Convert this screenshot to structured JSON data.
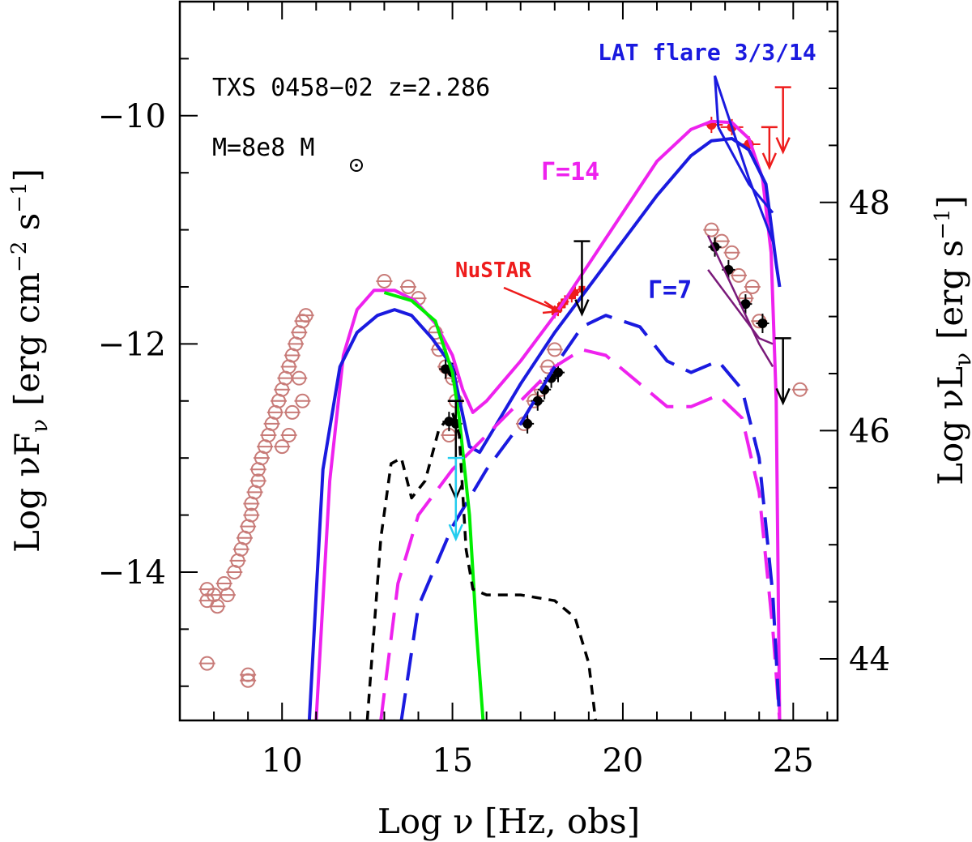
{
  "chart_data": {
    "type": "scatter",
    "title": "",
    "xlabel": "Log ν  [Hz, obs]",
    "ylabel": "Log νF",
    "ylabel_sub": "ν",
    "ylabel_units": "[erg cm",
    "ylabel_units_exp": "−2",
    "ylabel_units_tail": " s",
    "ylabel_units_exp2": "−1",
    "ylabel_units_close": "]",
    "ylabel_right": "Log νL",
    "ylabel_right_sub": "ν",
    "ylabel_right_units": "[erg s",
    "ylabel_right_units_exp": "−1",
    "ylabel_right_units_close": "]",
    "xlim": [
      7,
      26.3
    ],
    "ylim": [
      -15.3,
      -9
    ],
    "ylim_right": [
      43.46,
      49.76
    ],
    "x_ticks": [
      "10",
      "15",
      "20",
      "25"
    ],
    "y_ticks": [
      "−14",
      "−12",
      "−10"
    ],
    "y_ticks_right": [
      "44",
      "46",
      "48"
    ],
    "annotations": {
      "source": "TXS 0458−02 z=2.286",
      "mass": "M=8e8 M",
      "lat_flare": "LAT flare 3/3/14",
      "gamma14": "Γ=14",
      "gamma7": "Γ=7",
      "nustar": "NuSTAR"
    },
    "colors": {
      "archival": "#c87b78",
      "black_points": "#000000",
      "nustar_points": "#ee1c1c",
      "lat_points": "#ee1c1c",
      "swift_uplim": "#22ccee",
      "gamma14_model": "#ee22ee",
      "gamma7_model": "#1a1adf",
      "disk": "#00ee00",
      "disk_torus": "#000000",
      "bowtie_lat": "#1a1adf",
      "bowtie_archive": "#7a1a7a"
    },
    "series": [
      {
        "name": "",
        "kind": "archival_points",
        "points": [
          [
            7.8,
            -14.15
          ],
          [
            7.8,
            -14.25
          ],
          [
            7.8,
            -14.8
          ],
          [
            8.0,
            -14.2
          ],
          [
            8.1,
            -14.3
          ],
          [
            8.3,
            -14.1
          ],
          [
            8.4,
            -14.2
          ],
          [
            8.6,
            -14.0
          ],
          [
            8.7,
            -13.9
          ],
          [
            8.8,
            -13.8
          ],
          [
            8.9,
            -13.7
          ],
          [
            9.0,
            -13.6
          ],
          [
            9.0,
            -14.9
          ],
          [
            9.0,
            -14.95
          ],
          [
            9.1,
            -13.5
          ],
          [
            9.1,
            -13.4
          ],
          [
            9.2,
            -13.3
          ],
          [
            9.3,
            -13.2
          ],
          [
            9.3,
            -13.1
          ],
          [
            9.4,
            -13.0
          ],
          [
            9.5,
            -12.9
          ],
          [
            9.6,
            -12.8
          ],
          [
            9.7,
            -12.7
          ],
          [
            9.8,
            -12.6
          ],
          [
            9.9,
            -12.5
          ],
          [
            10.0,
            -12.4
          ],
          [
            10.1,
            -12.3
          ],
          [
            10.2,
            -12.2
          ],
          [
            10.3,
            -12.1
          ],
          [
            10.4,
            -12.0
          ],
          [
            10.5,
            -11.9
          ],
          [
            10.6,
            -11.8
          ],
          [
            10.7,
            -11.75
          ],
          [
            10.3,
            -12.6
          ],
          [
            10.5,
            -12.3
          ],
          [
            10.6,
            -12.5
          ],
          [
            10.2,
            -12.8
          ],
          [
            10.0,
            -12.9
          ],
          [
            13.0,
            -11.45
          ],
          [
            13.7,
            -11.5
          ],
          [
            14.0,
            -11.6
          ],
          [
            14.5,
            -11.9
          ],
          [
            14.6,
            -12.05
          ],
          [
            14.8,
            -12.2
          ],
          [
            15.0,
            -12.3
          ],
          [
            15.1,
            -12.5
          ],
          [
            14.9,
            -12.8
          ],
          [
            17.1,
            -12.7
          ],
          [
            17.4,
            -12.5
          ],
          [
            17.6,
            -12.4
          ],
          [
            17.8,
            -12.2
          ],
          [
            18.0,
            -12.05
          ],
          [
            22.6,
            -11.0
          ],
          [
            22.9,
            -11.1
          ],
          [
            23.2,
            -11.2
          ],
          [
            23.4,
            -11.4
          ],
          [
            23.6,
            -11.6
          ],
          [
            23.8,
            -11.5
          ],
          [
            24.0,
            -11.8
          ],
          [
            25.2,
            -12.4
          ]
        ]
      },
      {
        "name": "",
        "kind": "black_points",
        "points": [
          [
            14.8,
            -12.22
          ],
          [
            15.0,
            -12.25
          ],
          [
            14.9,
            -12.68
          ],
          [
            15.1,
            -12.7
          ],
          [
            17.2,
            -12.7
          ],
          [
            17.5,
            -12.5
          ],
          [
            17.7,
            -12.4
          ],
          [
            17.9,
            -12.3
          ],
          [
            18.1,
            -12.25
          ],
          [
            22.7,
            -11.15
          ],
          [
            23.1,
            -11.35
          ],
          [
            23.6,
            -11.65
          ],
          [
            24.1,
            -11.82
          ]
        ]
      },
      {
        "name": "NuSTAR",
        "kind": "nustar_points",
        "points": [
          [
            18.0,
            -11.72
          ],
          [
            18.1,
            -11.7
          ],
          [
            18.2,
            -11.66
          ],
          [
            18.3,
            -11.63
          ],
          [
            18.5,
            -11.58
          ],
          [
            18.6,
            -11.55
          ],
          [
            18.8,
            -11.52
          ]
        ]
      },
      {
        "name": "LAT flare 3/3/14",
        "kind": "lat_points",
        "points": [
          [
            22.6,
            -10.08
          ],
          [
            23.2,
            -10.1
          ],
          [
            23.7,
            -10.25
          ]
        ]
      },
      {
        "name": "Γ=14",
        "kind": "model_solid",
        "points": [
          [
            11.0,
            -15.3
          ],
          [
            11.4,
            -13.2
          ],
          [
            11.8,
            -12.1
          ],
          [
            12.2,
            -11.7
          ],
          [
            12.7,
            -11.53
          ],
          [
            13.3,
            -11.53
          ],
          [
            13.9,
            -11.62
          ],
          [
            14.5,
            -11.82
          ],
          [
            15.0,
            -12.1
          ],
          [
            15.3,
            -12.4
          ],
          [
            15.6,
            -12.6
          ],
          [
            16.0,
            -12.5
          ],
          [
            17.0,
            -12.15
          ],
          [
            18.0,
            -11.75
          ],
          [
            19.0,
            -11.3
          ],
          [
            20.0,
            -10.85
          ],
          [
            21.0,
            -10.4
          ],
          [
            22.0,
            -10.12
          ],
          [
            22.6,
            -10.05
          ],
          [
            23.2,
            -10.06
          ],
          [
            23.7,
            -10.2
          ],
          [
            24.1,
            -10.55
          ],
          [
            24.35,
            -11.2
          ],
          [
            24.5,
            -12.5
          ],
          [
            24.6,
            -15.3
          ]
        ]
      },
      {
        "name": "Γ=7",
        "kind": "model_solid",
        "points": [
          [
            10.8,
            -15.3
          ],
          [
            11.2,
            -13.1
          ],
          [
            11.7,
            -12.2
          ],
          [
            12.2,
            -11.9
          ],
          [
            12.8,
            -11.75
          ],
          [
            13.3,
            -11.7
          ],
          [
            13.8,
            -11.75
          ],
          [
            14.4,
            -11.95
          ],
          [
            15.0,
            -12.2
          ],
          [
            15.5,
            -12.9
          ],
          [
            15.8,
            -12.95
          ],
          [
            16.2,
            -12.75
          ],
          [
            17.0,
            -12.35
          ],
          [
            18.0,
            -11.9
          ],
          [
            19.0,
            -11.5
          ],
          [
            20.0,
            -11.1
          ],
          [
            21.0,
            -10.7
          ],
          [
            22.0,
            -10.35
          ],
          [
            22.6,
            -10.22
          ],
          [
            23.2,
            -10.2
          ],
          [
            23.7,
            -10.3
          ],
          [
            24.2,
            -10.6
          ],
          [
            24.5,
            -11.3
          ],
          [
            24.6,
            -11.5
          ]
        ]
      },
      {
        "name": "",
        "kind": "model_dashed_magenta",
        "points": [
          [
            12.9,
            -15.3
          ],
          [
            13.4,
            -14.1
          ],
          [
            14.0,
            -13.5
          ],
          [
            15.0,
            -13.1
          ],
          [
            16.0,
            -12.8
          ],
          [
            17.0,
            -12.5
          ],
          [
            18.0,
            -12.2
          ],
          [
            18.8,
            -12.05
          ],
          [
            19.5,
            -12.1
          ],
          [
            20.5,
            -12.35
          ],
          [
            21.3,
            -12.55
          ],
          [
            22.0,
            -12.55
          ],
          [
            22.8,
            -12.45
          ],
          [
            23.5,
            -12.65
          ],
          [
            24.0,
            -13.3
          ],
          [
            24.4,
            -14.5
          ],
          [
            24.6,
            -15.3
          ]
        ]
      },
      {
        "name": "",
        "kind": "model_dashed_blue",
        "points": [
          [
            13.5,
            -15.3
          ],
          [
            14.0,
            -14.3
          ],
          [
            15.0,
            -13.6
          ],
          [
            16.0,
            -13.1
          ],
          [
            17.0,
            -12.7
          ],
          [
            18.0,
            -12.2
          ],
          [
            18.8,
            -11.85
          ],
          [
            19.5,
            -11.75
          ],
          [
            20.5,
            -11.85
          ],
          [
            21.3,
            -12.15
          ],
          [
            22.0,
            -12.25
          ],
          [
            22.8,
            -12.15
          ],
          [
            23.5,
            -12.4
          ],
          [
            24.0,
            -13.0
          ],
          [
            24.4,
            -14.2
          ],
          [
            24.6,
            -15.3
          ]
        ]
      },
      {
        "name": "",
        "kind": "disk",
        "points": [
          [
            13.0,
            -11.55
          ],
          [
            13.8,
            -11.62
          ],
          [
            14.5,
            -11.8
          ],
          [
            15.0,
            -12.25
          ],
          [
            15.2,
            -12.65
          ],
          [
            15.5,
            -13.5
          ],
          [
            15.7,
            -14.5
          ],
          [
            15.9,
            -15.3
          ]
        ]
      },
      {
        "name": "",
        "kind": "disk_torus_dashed",
        "points": [
          [
            12.5,
            -15.3
          ],
          [
            12.9,
            -13.7
          ],
          [
            13.2,
            -13.05
          ],
          [
            13.5,
            -13.0
          ],
          [
            13.8,
            -13.35
          ],
          [
            14.2,
            -13.2
          ],
          [
            14.6,
            -12.75
          ],
          [
            15.0,
            -12.6
          ],
          [
            15.2,
            -12.8
          ],
          [
            15.4,
            -13.8
          ],
          [
            15.6,
            -14.15
          ],
          [
            16.0,
            -14.2
          ],
          [
            17.0,
            -14.2
          ],
          [
            18.0,
            -14.25
          ],
          [
            18.6,
            -14.4
          ],
          [
            19.0,
            -14.8
          ],
          [
            19.2,
            -15.3
          ]
        ]
      }
    ]
  }
}
